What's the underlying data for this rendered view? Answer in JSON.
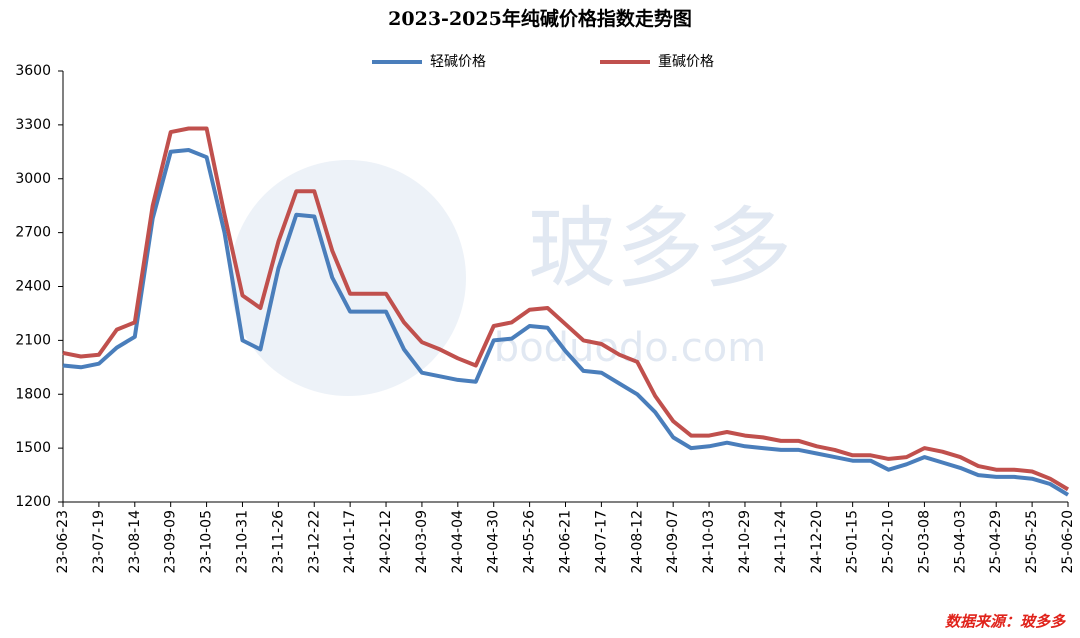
{
  "chart_data": {
    "type": "line",
    "title": "2023-2025年纯碱价格指数走势图",
    "source": "数据来源：玻多多",
    "categories": [
      "23-06-23",
      null,
      "23-07-19",
      null,
      "23-08-14",
      null,
      "23-09-09",
      null,
      "23-10-05",
      null,
      "23-10-31",
      null,
      "23-11-26",
      null,
      "23-12-22",
      null,
      "24-01-17",
      null,
      "24-02-12",
      null,
      "24-03-09",
      null,
      "24-04-04",
      null,
      "24-04-30",
      null,
      "24-05-26",
      null,
      "24-06-21",
      null,
      "24-07-17",
      null,
      "24-08-12",
      null,
      "24-09-07",
      null,
      "24-10-03",
      null,
      "24-10-29",
      null,
      "24-11-24",
      null,
      "24-12-20",
      null,
      "25-01-15",
      null,
      "25-02-10",
      null,
      "25-03-08",
      null,
      "25-04-03",
      null,
      "25-04-29",
      null,
      "25-05-25",
      null,
      "25-06-20"
    ],
    "series": [
      {
        "name": "轻碱价格",
        "color": "#4a7ebb",
        "values": [
          1960,
          1950,
          1970,
          2060,
          2120,
          2780,
          3150,
          3160,
          3120,
          2700,
          2100,
          2050,
          2500,
          2800,
          2790,
          2450,
          2260,
          2260,
          2260,
          2050,
          1920,
          1900,
          1880,
          1870,
          2100,
          2110,
          2180,
          2170,
          2040,
          1930,
          1920,
          1860,
          1800,
          1700,
          1560,
          1500,
          1510,
          1530,
          1510,
          1500,
          1490,
          1490,
          1470,
          1450,
          1430,
          1430,
          1380,
          1410,
          1450,
          1420,
          1390,
          1350,
          1340,
          1340,
          1330,
          1300,
          1240
        ]
      },
      {
        "name": "重碱价格",
        "color": "#c0504d",
        "values": [
          2030,
          2010,
          2020,
          2160,
          2200,
          2850,
          3260,
          3280,
          3280,
          2800,
          2350,
          2280,
          2650,
          2930,
          2930,
          2600,
          2360,
          2360,
          2360,
          2200,
          2090,
          2050,
          2000,
          1960,
          2180,
          2200,
          2270,
          2280,
          2190,
          2100,
          2080,
          2020,
          1980,
          1790,
          1650,
          1570,
          1570,
          1590,
          1570,
          1560,
          1540,
          1540,
          1510,
          1490,
          1460,
          1460,
          1440,
          1450,
          1500,
          1480,
          1450,
          1400,
          1380,
          1380,
          1370,
          1330,
          1270
        ]
      }
    ],
    "ylim": [
      1200,
      3600
    ],
    "yticks": [
      1200,
      1500,
      1800,
      2100,
      2400,
      2700,
      3000,
      3300,
      3600
    ],
    "grid": false,
    "legend": "top"
  },
  "watermark": {
    "name": "玻多多",
    "url": "boduodo.com"
  }
}
